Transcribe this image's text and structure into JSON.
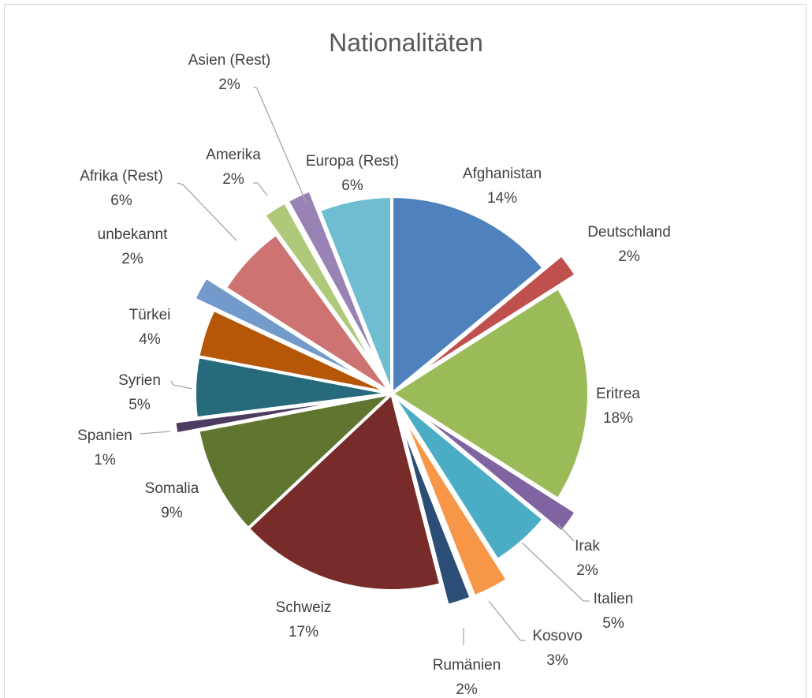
{
  "chart_data": {
    "type": "pie",
    "title": "Nationalitäten",
    "slices": [
      {
        "label": "Afghanistan",
        "percent_label": "14%",
        "value": 14,
        "color": "#4f81bd",
        "exploded": false
      },
      {
        "label": "Deutschland",
        "percent_label": "2%",
        "value": 2,
        "color": "#c0504d",
        "exploded": true
      },
      {
        "label": "Eritrea",
        "percent_label": "18%",
        "value": 18,
        "color": "#9bbb59",
        "exploded": false
      },
      {
        "label": "Irak",
        "percent_label": "2%",
        "value": 2,
        "color": "#8064a2",
        "exploded": true
      },
      {
        "label": "Italien",
        "percent_label": "5%",
        "value": 5,
        "color": "#4bacc6",
        "exploded": false
      },
      {
        "label": "Kosovo",
        "percent_label": "3%",
        "value": 3,
        "color": "#f79646",
        "exploded": true
      },
      {
        "label": "Rumänien",
        "percent_label": "2%",
        "value": 2,
        "color": "#2c4d75",
        "exploded": true
      },
      {
        "label": "Schweiz",
        "percent_label": "17%",
        "value": 17,
        "color": "#772c2a",
        "exploded": false
      },
      {
        "label": "Somalia",
        "percent_label": "9%",
        "value": 9,
        "color": "#5f7530",
        "exploded": false
      },
      {
        "label": "Spanien",
        "percent_label": "1%",
        "value": 1,
        "color": "#4d3b62",
        "exploded": true
      },
      {
        "label": "Syrien",
        "percent_label": "5%",
        "value": 5,
        "color": "#276a7c",
        "exploded": false
      },
      {
        "label": "Türkei",
        "percent_label": "4%",
        "value": 4,
        "color": "#b65708",
        "exploded": false
      },
      {
        "label": "unbekannt",
        "percent_label": "2%",
        "value": 2,
        "color": "#729aca",
        "exploded": true
      },
      {
        "label": "Afrika (Rest)",
        "percent_label": "6%",
        "value": 6,
        "color": "#cd7371",
        "exploded": false
      },
      {
        "label": "Amerika",
        "percent_label": "2%",
        "value": 2,
        "color": "#afc97a",
        "exploded": true
      },
      {
        "label": "Asien (Rest)",
        "percent_label": "2%",
        "value": 2,
        "color": "#9983b5",
        "exploded": true
      },
      {
        "label": "Europa (Rest)",
        "percent_label": "6%",
        "value": 6,
        "color": "#6fbdd1",
        "exploded": false
      }
    ],
    "legend": "none",
    "data_labels": "outside"
  }
}
